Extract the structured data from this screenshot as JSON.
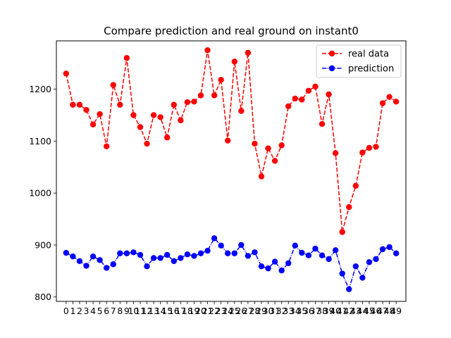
{
  "chart_data": {
    "type": "line",
    "title": "Compare prediction and real ground on instant0",
    "xlabel": "",
    "ylabel": "",
    "x": [
      0,
      1,
      2,
      3,
      4,
      5,
      6,
      7,
      8,
      9,
      10,
      11,
      12,
      13,
      14,
      15,
      16,
      17,
      18,
      19,
      20,
      21,
      22,
      23,
      24,
      25,
      26,
      27,
      28,
      29,
      30,
      31,
      32,
      33,
      34,
      35,
      36,
      37,
      38,
      39,
      40,
      41,
      42,
      43,
      44,
      45,
      46,
      47,
      48,
      49
    ],
    "xticks": [
      "0",
      "1",
      "2",
      "3",
      "4",
      "5",
      "6",
      "7",
      "8",
      "9",
      "10",
      "11",
      "12",
      "13",
      "14",
      "15",
      "16",
      "17",
      "18",
      "19",
      "20",
      "21",
      "22",
      "23",
      "24",
      "25",
      "26",
      "27",
      "28",
      "29",
      "30",
      "31",
      "32",
      "33",
      "34",
      "35",
      "36",
      "37",
      "38",
      "39",
      "40",
      "41",
      "42",
      "43",
      "44",
      "45",
      "46",
      "47",
      "48",
      "49"
    ],
    "yticks": [
      800,
      900,
      1000,
      1100,
      1200
    ],
    "xlim": [
      -1.45,
      50.45
    ],
    "ylim": [
      791.5,
      1293
    ],
    "grid": false,
    "legend_position": "top-right",
    "series": [
      {
        "name": "real data",
        "color": "#ff0000",
        "linestyle": "dashed",
        "marker": "circle",
        "values": [
          1230,
          1170,
          1170,
          1160,
          1132,
          1152,
          1090,
          1208,
          1170,
          1260,
          1150,
          1127,
          1095,
          1150,
          1146,
          1107,
          1170,
          1140,
          1175,
          1176,
          1188,
          1275,
          1188,
          1218,
          1101,
          1253,
          1158,
          1270,
          1095,
          1032,
          1086,
          1062,
          1092,
          1167,
          1182,
          1180,
          1197,
          1205,
          1133,
          1190,
          1077,
          925,
          973,
          1014,
          1078,
          1087,
          1089,
          1173,
          1185,
          1176
        ]
      },
      {
        "name": "prediction",
        "color": "#0000ff",
        "linestyle": "dashdot",
        "marker": "circle",
        "values": [
          885,
          878,
          869,
          860,
          878,
          871,
          856,
          863,
          884,
          884,
          886,
          881,
          859,
          875,
          875,
          881,
          869,
          875,
          882,
          879,
          884,
          889,
          913,
          899,
          884,
          884,
          900,
          879,
          886,
          859,
          855,
          868,
          851,
          865,
          899,
          885,
          880,
          893,
          880,
          873,
          890,
          845,
          815,
          859,
          837,
          867,
          873,
          892,
          896,
          884
        ]
      }
    ]
  }
}
